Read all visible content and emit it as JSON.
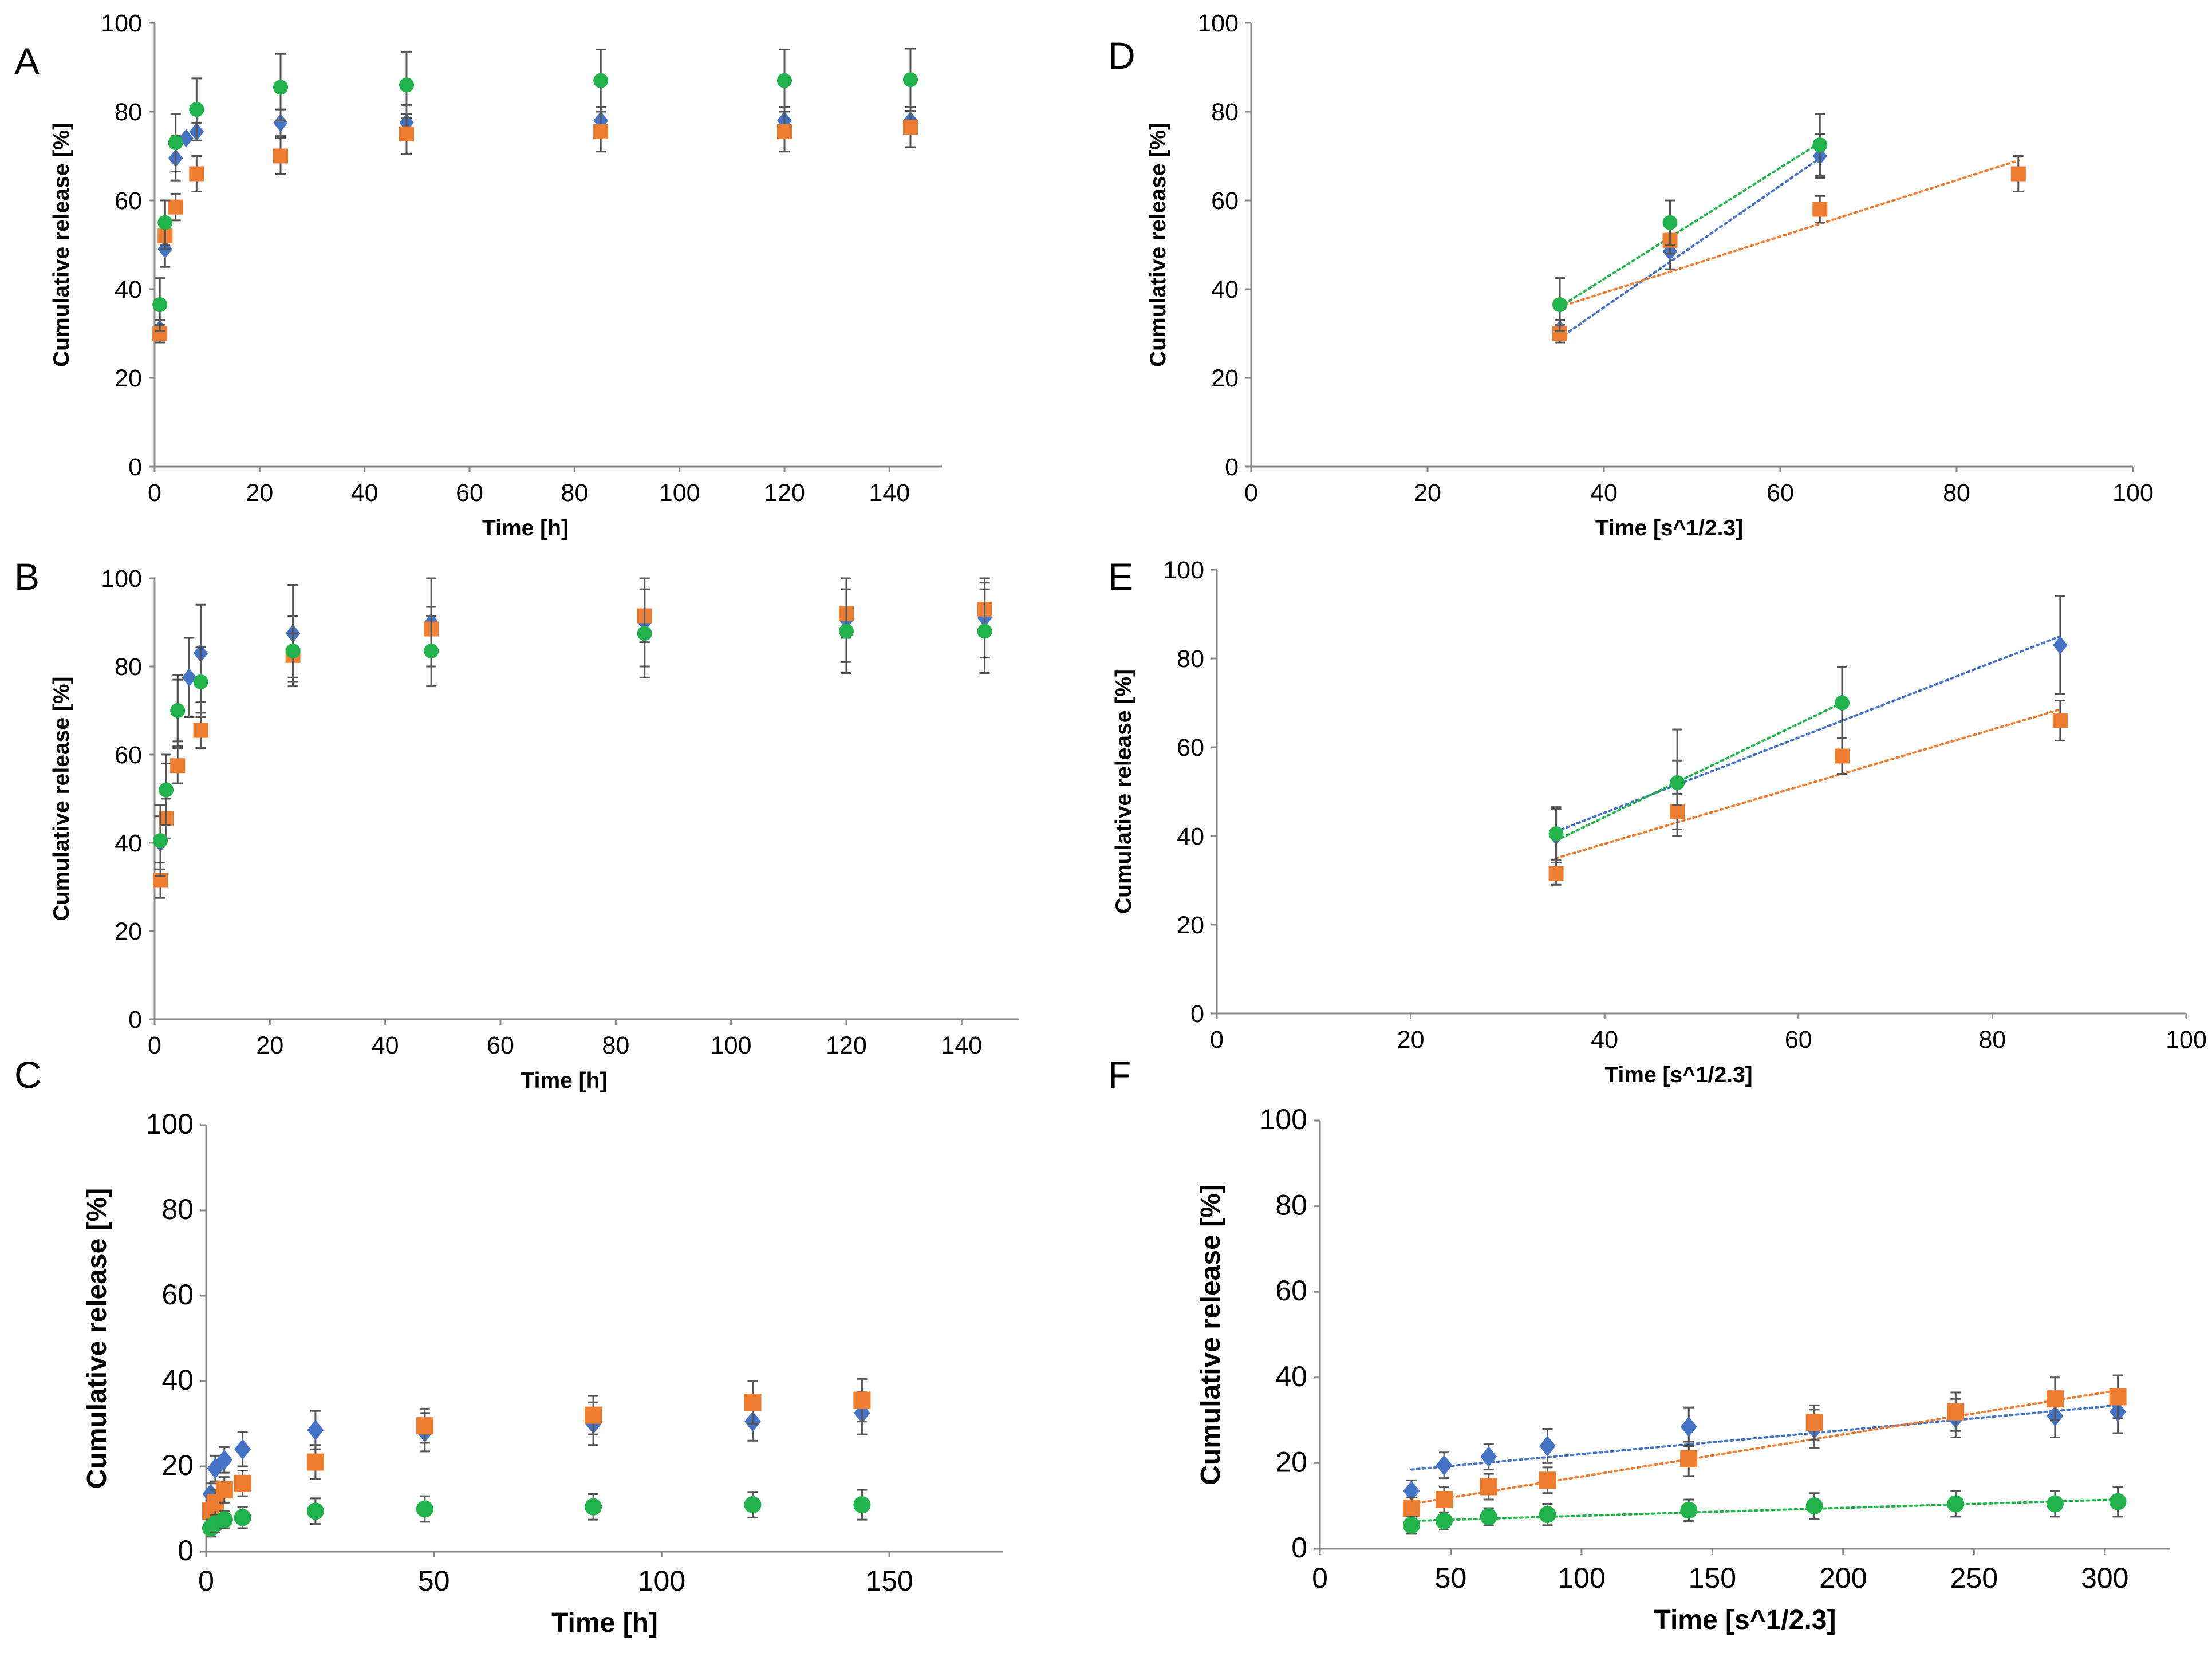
{
  "figure": {
    "colors": {
      "series1": "#4472C4",
      "series2": "#ED7D31",
      "series3": "#21B24B",
      "errorbar": "#555555",
      "axis": "#888888"
    }
  },
  "chart_data": [
    {
      "panel": "A",
      "type": "scatter",
      "xlabel": "Time [h]",
      "ylabel": "Cumulative release [%]",
      "xlim": [
        0,
        150
      ],
      "ylim": [
        0,
        100
      ],
      "xticks": [
        0,
        20,
        40,
        60,
        80,
        100,
        120,
        140
      ],
      "xtick_labels": [
        "0",
        "20",
        "40",
        "60",
        "80",
        "100",
        "120",
        "140"
      ],
      "yticks": [
        0,
        20,
        40,
        60,
        80,
        100
      ],
      "ytick_labels": [
        "0",
        "20",
        "40",
        "60",
        "80",
        "100"
      ],
      "series": [
        {
          "marker": "diamond",
          "color": "#4472C4",
          "x": [
            1,
            2,
            4,
            6,
            8,
            24,
            48,
            85,
            120,
            144
          ],
          "y": [
            31,
            49,
            69.5,
            74,
            75.5,
            77.5,
            77.5,
            78,
            78,
            78
          ],
          "err": [
            2,
            4,
            5,
            0,
            2,
            3,
            4,
            3,
            3,
            3
          ]
        },
        {
          "marker": "square",
          "color": "#ED7D31",
          "x": [
            1,
            2,
            4,
            8,
            24,
            48,
            85,
            120,
            144
          ],
          "y": [
            30,
            52,
            58.5,
            66,
            70,
            75,
            75.5,
            75.5,
            76.5
          ],
          "err": [
            2,
            3,
            3,
            4,
            4,
            4.5,
            4.5,
            4.5,
            4.5
          ]
        },
        {
          "marker": "circle",
          "color": "#21B24B",
          "x": [
            1,
            2,
            4,
            8,
            24,
            48,
            85,
            120,
            144
          ],
          "y": [
            36.5,
            55,
            73,
            80.5,
            85.5,
            86,
            87,
            87,
            87.2
          ],
          "err": [
            6,
            5,
            6.5,
            7,
            7.5,
            7.5,
            7,
            7,
            7
          ]
        }
      ]
    },
    {
      "panel": "B",
      "type": "scatter",
      "xlabel": "Time [h]",
      "ylabel": "Cumulative release [%]",
      "xlim": [
        0,
        150
      ],
      "ylim": [
        0,
        100
      ],
      "xticks": [
        0,
        20,
        40,
        60,
        80,
        100,
        120,
        140
      ],
      "xtick_labels": [
        "0",
        "20",
        "40",
        "60",
        "80",
        "100",
        "120",
        "140"
      ],
      "yticks": [
        0,
        20,
        40,
        60,
        80,
        100
      ],
      "ytick_labels": [
        "0",
        "20",
        "40",
        "60",
        "80",
        "100"
      ],
      "series": [
        {
          "marker": "diamond",
          "color": "#4472C4",
          "x": [
            1,
            2,
            4,
            6,
            8,
            24,
            48,
            85,
            120,
            144
          ],
          "y": [
            40,
            52,
            70,
            77.5,
            83,
            87.5,
            90,
            90,
            90.5,
            91
          ],
          "err": [
            6,
            6,
            7,
            9,
            11,
            11,
            10,
            10,
            9.5,
            9
          ]
        },
        {
          "marker": "square",
          "color": "#ED7D31",
          "x": [
            1,
            2,
            4,
            8,
            24,
            48,
            85,
            120,
            144
          ],
          "y": [
            31.5,
            45.5,
            57.5,
            65.5,
            82.5,
            88.5,
            91.5,
            92,
            93
          ],
          "err": [
            4,
            4.5,
            4,
            4,
            5,
            5,
            6,
            5.5,
            6
          ]
        },
        {
          "marker": "circle",
          "color": "#21B24B",
          "x": [
            1,
            2,
            4,
            8,
            24,
            48,
            85,
            120,
            144
          ],
          "y": [
            40.5,
            52,
            70,
            76.5,
            83.5,
            83.5,
            87.5,
            88,
            88
          ],
          "err": [
            8,
            8,
            8,
            8,
            8,
            8,
            10,
            9.5,
            9.5
          ]
        }
      ]
    },
    {
      "panel": "C",
      "type": "scatter",
      "xlabel": "Time [h]",
      "ylabel": "Cumulative release [%]",
      "xlim": [
        0,
        175
      ],
      "ylim": [
        0,
        100
      ],
      "xticks": [
        0,
        50,
        100,
        150
      ],
      "xtick_labels": [
        "0",
        "50",
        "100",
        "150"
      ],
      "yticks": [
        0,
        20,
        40,
        60,
        80,
        100
      ],
      "ytick_labels": [
        "0",
        "20",
        "40",
        "60",
        "80",
        "100"
      ],
      "series": [
        {
          "marker": "diamond",
          "color": "#4472C4",
          "x": [
            1,
            2,
            4,
            8,
            24,
            48,
            85,
            120,
            144
          ],
          "y": [
            13.5,
            19.5,
            21.5,
            24,
            28.5,
            28,
            30,
            30.5,
            32.5
          ],
          "err": [
            2.5,
            3,
            3,
            4,
            4.5,
            4.5,
            5,
            4.5,
            5
          ]
        },
        {
          "marker": "square",
          "color": "#ED7D31",
          "x": [
            1,
            2,
            4,
            8,
            24,
            48,
            85,
            120,
            144
          ],
          "y": [
            9.5,
            11.5,
            14.5,
            16,
            21,
            29.5,
            32,
            35,
            35.5
          ],
          "err": [
            2.5,
            3,
            3,
            3,
            4,
            4,
            4.5,
            5,
            5
          ]
        },
        {
          "marker": "circle",
          "color": "#21B24B",
          "x": [
            1,
            2,
            4,
            8,
            24,
            48,
            85,
            120,
            144
          ],
          "y": [
            5.5,
            6.5,
            7.5,
            8,
            9.5,
            10,
            10.5,
            11,
            11
          ],
          "err": [
            2,
            2,
            2,
            2.5,
            3,
            3,
            3,
            3,
            3.5
          ]
        }
      ]
    },
    {
      "panel": "D",
      "type": "scatter",
      "xlabel": "Time [s^1/2.3]",
      "ylabel": "Cumulative release [%]",
      "xlim": [
        0,
        100
      ],
      "ylim": [
        0,
        100
      ],
      "xticks": [
        0,
        20,
        40,
        60,
        80,
        100
      ],
      "xtick_labels": [
        "0",
        "20",
        "40",
        "60",
        "80",
        "100"
      ],
      "yticks": [
        0,
        20,
        40,
        60,
        80,
        100
      ],
      "ytick_labels": [
        "0",
        "20",
        "40",
        "60",
        "80",
        "100"
      ],
      "series": [
        {
          "marker": "diamond",
          "color": "#4472C4",
          "x": [
            35,
            47.5,
            64.5
          ],
          "y": [
            31,
            48.5,
            70
          ],
          "err": [
            2,
            4,
            5
          ],
          "trend": {
            "x0": 35,
            "y0": 29,
            "x1": 64.5,
            "y1": 69.5
          }
        },
        {
          "marker": "square",
          "color": "#ED7D31",
          "x": [
            35,
            47.5,
            64.5,
            87
          ],
          "y": [
            30,
            51,
            58,
            66
          ],
          "err": [
            2,
            3,
            3,
            4
          ],
          "trend": {
            "x0": 35,
            "y0": 36,
            "x1": 87,
            "y1": 69
          }
        },
        {
          "marker": "circle",
          "color": "#21B24B",
          "x": [
            35,
            47.5,
            64.5
          ],
          "y": [
            36.5,
            55,
            72.5
          ],
          "err": [
            6,
            5,
            7
          ],
          "trend": {
            "x0": 35,
            "y0": 36,
            "x1": 64.5,
            "y1": 73
          }
        }
      ]
    },
    {
      "panel": "E",
      "type": "scatter",
      "xlabel": "Time [s^1/2.3]",
      "ylabel": "Cumulative release [%]",
      "xlim": [
        0,
        100
      ],
      "ylim": [
        0,
        100
      ],
      "xticks": [
        0,
        20,
        40,
        60,
        80,
        100
      ],
      "xtick_labels": [
        "0",
        "20",
        "40",
        "60",
        "80",
        "100"
      ],
      "yticks": [
        0,
        20,
        40,
        60,
        80,
        100
      ],
      "ytick_labels": [
        "0",
        "20",
        "40",
        "60",
        "80",
        "100"
      ],
      "series": [
        {
          "marker": "diamond",
          "color": "#4472C4",
          "x": [
            35,
            47.5,
            64.5,
            87
          ],
          "y": [
            40,
            52,
            70,
            83
          ],
          "err": [
            6,
            12,
            8,
            11
          ],
          "trend": {
            "x0": 35,
            "y0": 41,
            "x1": 87,
            "y1": 85
          }
        },
        {
          "marker": "square",
          "color": "#ED7D31",
          "x": [
            35,
            47.5,
            64.5,
            87
          ],
          "y": [
            31.5,
            45.5,
            58,
            66
          ],
          "err": [
            2.5,
            4,
            4,
            4.5
          ],
          "trend": {
            "x0": 35,
            "y0": 35,
            "x1": 87,
            "y1": 68.5
          }
        },
        {
          "marker": "circle",
          "color": "#21B24B",
          "x": [
            35,
            47.5,
            64.5
          ],
          "y": [
            40.5,
            52,
            70
          ],
          "err": [
            6,
            5,
            8
          ],
          "trend": {
            "x0": 35,
            "y0": 39,
            "x1": 64.5,
            "y1": 70
          }
        }
      ]
    },
    {
      "panel": "F",
      "type": "scatter",
      "xlabel": "Time [s^1/2.3]",
      "ylabel": "Cumulative release [%]",
      "xlim": [
        0,
        325
      ],
      "ylim": [
        0,
        100
      ],
      "xticks": [
        0,
        50,
        100,
        150,
        200,
        250,
        300
      ],
      "xtick_labels": [
        "0",
        "50",
        "100",
        "150",
        "200",
        "250",
        "300"
      ],
      "yticks": [
        0,
        20,
        40,
        60,
        80,
        100
      ],
      "ytick_labels": [
        "0",
        "20",
        "40",
        "60",
        "80",
        "100"
      ],
      "series": [
        {
          "marker": "diamond",
          "color": "#4472C4",
          "x": [
            35,
            47.5,
            64.5,
            87,
            141,
            189,
            243,
            281,
            305
          ],
          "y": [
            13.5,
            19.5,
            21.5,
            24,
            28.5,
            28,
            30.5,
            31,
            32
          ],
          "err": [
            2.5,
            3,
            3,
            4,
            4.5,
            4.5,
            4.5,
            5,
            5
          ],
          "trend": {
            "x0": 35,
            "y0": 18.5,
            "x1": 305,
            "y1": 33.5
          }
        },
        {
          "marker": "square",
          "color": "#ED7D31",
          "x": [
            35,
            47.5,
            64.5,
            87,
            141,
            189,
            243,
            281,
            305
          ],
          "y": [
            9.5,
            11.5,
            14.5,
            16,
            21,
            29.5,
            32,
            35,
            35.5
          ],
          "err": [
            2.5,
            3,
            3,
            3,
            4,
            4,
            4.5,
            5,
            5
          ],
          "trend": {
            "x0": 35,
            "y0": 10.5,
            "x1": 305,
            "y1": 37
          }
        },
        {
          "marker": "circle",
          "color": "#21B24B",
          "x": [
            35,
            47.5,
            64.5,
            87,
            141,
            189,
            243,
            281,
            305
          ],
          "y": [
            5.5,
            6.5,
            7.5,
            8,
            9,
            10,
            10.5,
            10.5,
            11
          ],
          "err": [
            2,
            2,
            2,
            2.5,
            2.5,
            3,
            3,
            3,
            3.5
          ],
          "trend": {
            "x0": 35,
            "y0": 6.5,
            "x1": 305,
            "y1": 11.5
          }
        }
      ]
    }
  ]
}
